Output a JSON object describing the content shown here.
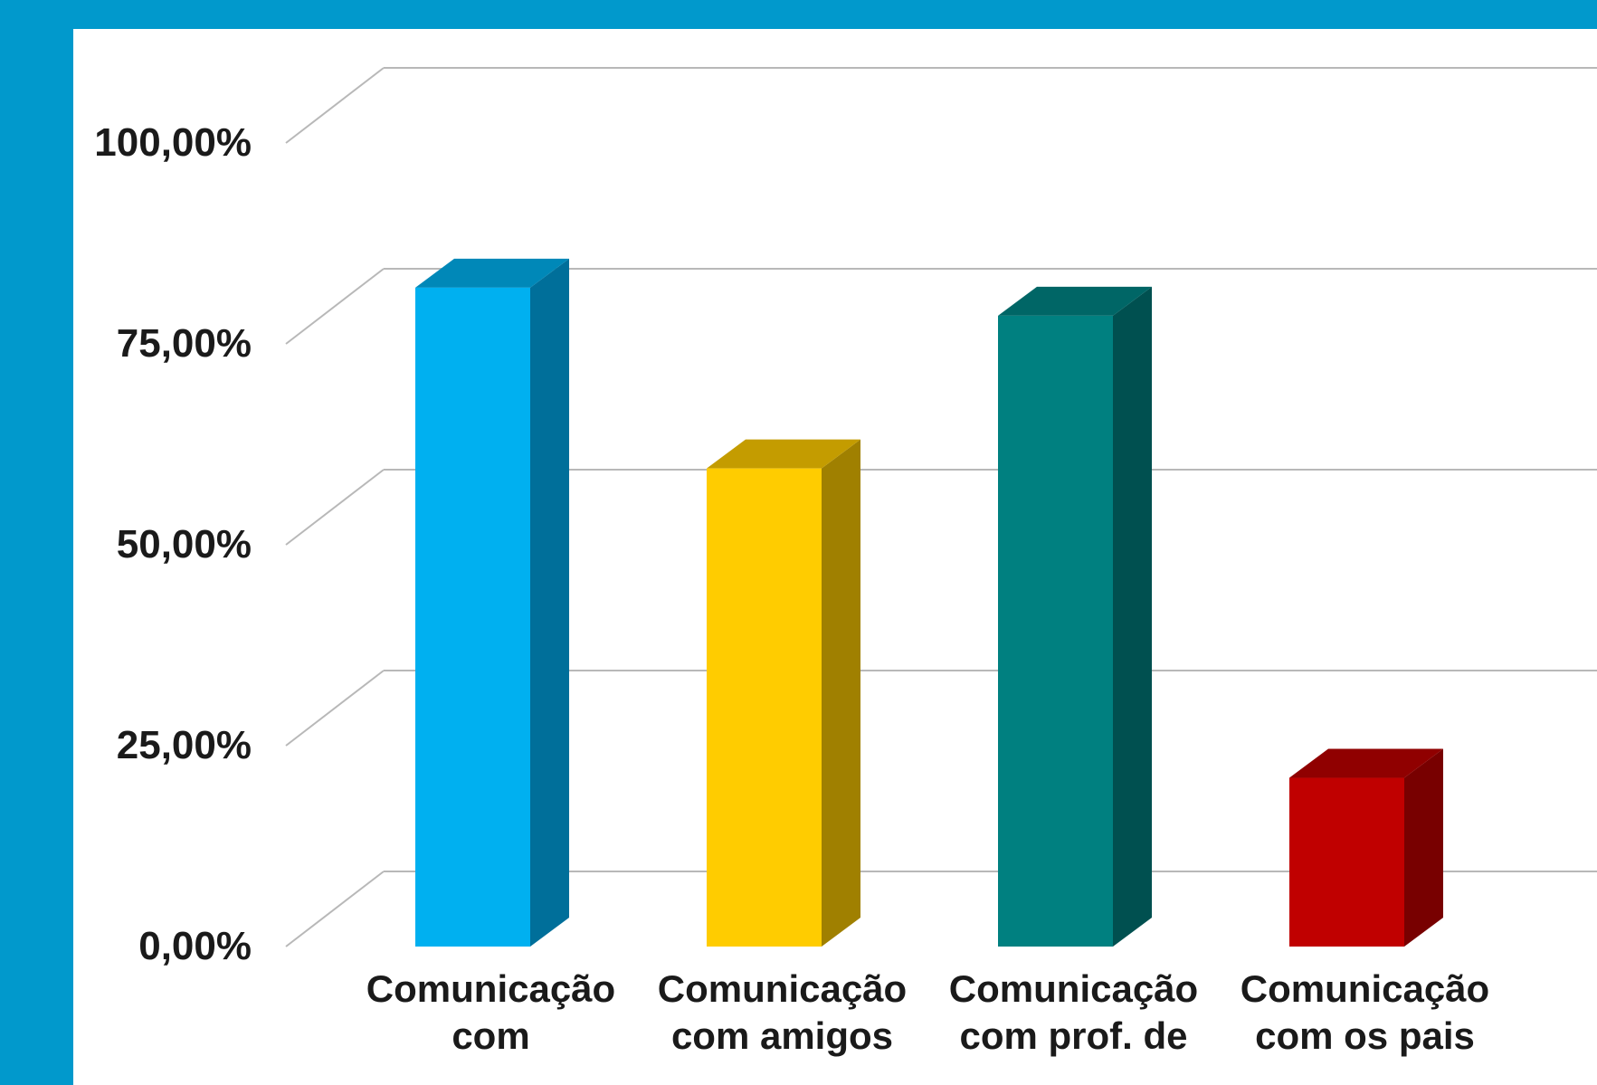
{
  "chart_data": {
    "type": "bar",
    "title": "",
    "xlabel": "",
    "ylabel": "",
    "ylim": [
      0,
      1
    ],
    "y_ticks": [
      "0,00%",
      "25,00%",
      "50,00%",
      "75,00%",
      "100,00%"
    ],
    "y_tick_values": [
      0,
      0.25,
      0.5,
      0.75,
      1.0
    ],
    "categories": [
      [
        "Comunicação",
        "com"
      ],
      [
        "Comunicação",
        "com amigos"
      ],
      [
        "Comunicação",
        "com prof. de"
      ],
      [
        "Comunicação",
        "com os pais"
      ]
    ],
    "values": [
      0.82,
      0.595,
      0.785,
      0.21
    ],
    "colors": [
      {
        "front": "#00b0f0",
        "side": "#006f9a",
        "top": "#0088b8"
      },
      {
        "front": "#ffcc00",
        "side": "#a08000",
        "top": "#c49c00"
      },
      {
        "front": "#008080",
        "side": "#005050",
        "top": "#006666"
      },
      {
        "front": "#c00000",
        "side": "#780000",
        "top": "#900000"
      }
    ],
    "grid": true,
    "legend": "none",
    "style": "3d-column"
  },
  "frame": {
    "border_color": "#0199cc",
    "background": "#ffffff"
  }
}
